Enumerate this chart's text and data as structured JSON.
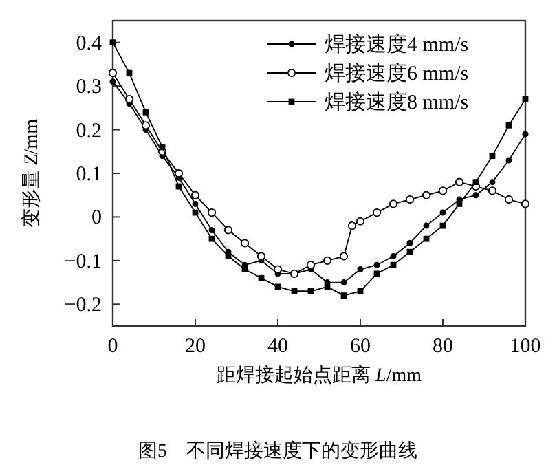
{
  "chart_data": {
    "type": "line",
    "title": "图5　不同焊接速度下的变形曲线",
    "xlabel": "距焊接起始点距离 *L*/mm",
    "ylabel": "变形量 *Z*/mm",
    "xlim": [
      0,
      100
    ],
    "ylim": [
      -0.25,
      0.45
    ],
    "xticks": [
      0,
      20,
      40,
      60,
      80,
      100
    ],
    "yticks": [
      {
        "value": -0.2,
        "label": "−0.2"
      },
      {
        "value": -0.1,
        "label": "−0.1"
      },
      0,
      0.1,
      0.2,
      0.3,
      0.4
    ],
    "grid": false,
    "legend": "top right",
    "line_style": "solid",
    "x": [
      0,
      4,
      8,
      12,
      16,
      20,
      24,
      28,
      32,
      36,
      40,
      44,
      48,
      52,
      56,
      60,
      64,
      68,
      72,
      76,
      80,
      84,
      88,
      92,
      96,
      100
    ],
    "series": [
      {
        "name": "焊接速度4 mm/s",
        "color": "#000000",
        "marker": "circle",
        "values": [
          0.31,
          0.26,
          0.2,
          0.14,
          0.09,
          0.03,
          -0.03,
          -0.08,
          -0.11,
          -0.1,
          -0.13,
          -0.13,
          -0.12,
          -0.15,
          -0.15,
          -0.12,
          -0.11,
          -0.09,
          -0.06,
          -0.02,
          0.01,
          0.04,
          0.05,
          0.08,
          0.13,
          0.19
        ]
      },
      {
        "name": "焊接速度6 mm/s",
        "color": "#000000",
        "marker": "circle",
        "x": [
          0,
          4,
          8,
          12,
          16,
          20,
          24,
          28,
          32,
          36,
          40,
          44,
          48,
          52,
          56,
          58,
          60,
          64,
          68,
          72,
          76,
          80,
          84,
          88,
          92,
          96,
          100
        ],
        "values": [
          0.33,
          0.27,
          0.21,
          0.15,
          0.1,
          0.05,
          0.01,
          -0.03,
          -0.06,
          -0.09,
          -0.12,
          -0.13,
          -0.11,
          -0.1,
          -0.09,
          -0.02,
          -0.01,
          0.01,
          0.03,
          0.04,
          0.05,
          0.06,
          0.08,
          0.07,
          0.06,
          0.04,
          0.03
        ]
      },
      {
        "name": "焊接速度8 mm/s",
        "color": "#000000",
        "marker": "square",
        "values": [
          0.4,
          0.33,
          0.24,
          0.16,
          0.07,
          0.01,
          -0.05,
          -0.09,
          -0.12,
          -0.14,
          -0.16,
          -0.17,
          -0.17,
          -0.16,
          -0.18,
          -0.17,
          -0.13,
          -0.11,
          -0.08,
          -0.05,
          -0.02,
          0.03,
          0.08,
          0.14,
          0.21,
          0.27
        ]
      }
    ]
  }
}
